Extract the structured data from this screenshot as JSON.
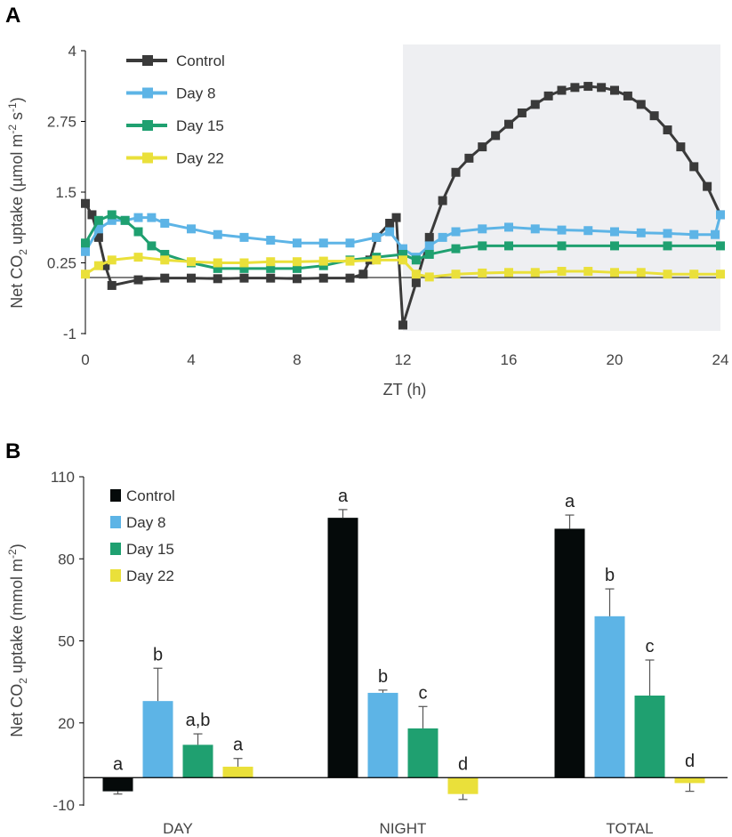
{
  "figure": {
    "panel_a_label": "A",
    "panel_b_label": "B"
  },
  "colors": {
    "control_line": "#3a3a3a",
    "control_bar": "#050a0a",
    "day8": "#5db4e6",
    "day15": "#1fa070",
    "day22": "#eae03a",
    "night_shade": "#eeeff2",
    "axis": "#000000"
  },
  "chart_data": [
    {
      "type": "line",
      "panel": "A",
      "title": "",
      "xlabel": "ZT (h)",
      "ylabel_parts": {
        "before": "Net  CO",
        "sub": "2",
        "middle": " uptake (µmol m",
        "sup1": "-2",
        "space": " s",
        "sup2": "-1",
        "after": ")"
      },
      "xlim": [
        0,
        24
      ],
      "ylim": [
        -1,
        4
      ],
      "xticks": [
        "0",
        "4",
        "8",
        "12",
        "16",
        "20",
        "24"
      ],
      "yticks": [
        "-1",
        "0.25",
        "1.5",
        "2.75",
        "4"
      ],
      "shaded_region_x": [
        12,
        24
      ],
      "legend": [
        "Control",
        "Day 8",
        "Day 15",
        "Day 22"
      ],
      "legend_position": "top-left",
      "series": [
        {
          "name": "Control",
          "color_key": "control_line",
          "x": [
            0,
            0.25,
            0.5,
            0.75,
            1,
            2,
            3,
            4,
            5,
            6,
            7,
            8,
            9,
            10,
            10.5,
            10.75,
            11,
            11.5,
            11.75,
            12,
            12.5,
            13,
            13.5,
            14,
            14.5,
            15,
            15.5,
            16,
            16.5,
            17,
            17.5,
            18,
            18.5,
            19,
            19.5,
            20,
            20.5,
            21,
            21.5,
            22,
            22.5,
            23,
            23.5,
            24
          ],
          "y": [
            1.3,
            1.1,
            0.7,
            0.2,
            -0.15,
            -0.05,
            -0.02,
            -0.02,
            -0.03,
            -0.02,
            -0.02,
            -0.03,
            -0.02,
            -0.02,
            0.05,
            0.3,
            0.7,
            0.95,
            1.05,
            -0.85,
            -0.1,
            0.7,
            1.35,
            1.85,
            2.1,
            2.3,
            2.5,
            2.7,
            2.9,
            3.05,
            3.2,
            3.3,
            3.35,
            3.37,
            3.35,
            3.3,
            3.2,
            3.05,
            2.85,
            2.6,
            2.3,
            1.95,
            1.6,
            1.1
          ]
        },
        {
          "name": "Day 8",
          "color_key": "day8",
          "x": [
            0,
            0.5,
            1,
            1.5,
            2,
            2.5,
            3,
            4,
            5,
            6,
            7,
            8,
            9,
            10,
            11,
            11.5,
            12,
            12.5,
            13,
            13.5,
            14,
            15,
            16,
            17,
            18,
            19,
            20,
            21,
            22,
            23,
            23.8,
            24
          ],
          "y": [
            0.45,
            0.85,
            1.0,
            1.0,
            1.05,
            1.05,
            0.95,
            0.85,
            0.75,
            0.7,
            0.65,
            0.6,
            0.6,
            0.6,
            0.7,
            0.8,
            0.5,
            0.35,
            0.55,
            0.7,
            0.8,
            0.85,
            0.88,
            0.85,
            0.83,
            0.82,
            0.8,
            0.78,
            0.77,
            0.75,
            0.75,
            1.1
          ]
        },
        {
          "name": "Day 15",
          "color_key": "day15",
          "x": [
            0,
            0.5,
            1,
            1.5,
            2,
            2.5,
            3,
            4,
            5,
            6,
            7,
            8,
            9,
            10,
            11,
            12,
            12.5,
            13,
            14,
            15,
            16,
            18,
            20,
            22,
            24
          ],
          "y": [
            0.6,
            1.0,
            1.1,
            1.0,
            0.8,
            0.55,
            0.4,
            0.25,
            0.15,
            0.15,
            0.15,
            0.15,
            0.2,
            0.3,
            0.35,
            0.4,
            0.3,
            0.4,
            0.5,
            0.55,
            0.55,
            0.55,
            0.55,
            0.55,
            0.55
          ]
        },
        {
          "name": "Day 22",
          "color_key": "day22",
          "x": [
            0,
            0.5,
            1,
            2,
            3,
            4,
            5,
            6,
            7,
            8,
            9,
            10,
            11,
            12,
            12.5,
            13,
            14,
            15,
            16,
            17,
            18,
            19,
            20,
            21,
            22,
            23,
            24
          ],
          "y": [
            0.05,
            0.2,
            0.3,
            0.35,
            0.3,
            0.27,
            0.25,
            0.25,
            0.27,
            0.27,
            0.28,
            0.28,
            0.3,
            0.3,
            0.05,
            0.0,
            0.05,
            0.07,
            0.08,
            0.08,
            0.1,
            0.1,
            0.08,
            0.08,
            0.05,
            0.05,
            0.05
          ]
        }
      ]
    },
    {
      "type": "bar",
      "panel": "B",
      "title": "",
      "xlabel": "",
      "ylabel_parts": {
        "before": "Net CO",
        "sub": "2",
        "middle": " uptake (mmol m",
        "sup1": "-2",
        "after": ")"
      },
      "ylim": [
        -10,
        110
      ],
      "yticks": [
        "-10",
        "20",
        "50",
        "80",
        "110"
      ],
      "categories": [
        "DAY",
        "NIGHT",
        "TOTAL"
      ],
      "legend": [
        "Control",
        "Day 8",
        "Day 15",
        "Day 22"
      ],
      "legend_position": "top-left",
      "series": [
        {
          "name": "Control",
          "color_key": "control_bar",
          "values": [
            -5,
            95,
            91
          ],
          "errors": [
            1,
            3,
            5
          ],
          "letters": [
            "a",
            "a",
            "a"
          ]
        },
        {
          "name": "Day 8",
          "color_key": "day8",
          "values": [
            28,
            31,
            59
          ],
          "errors": [
            12,
            1,
            10
          ],
          "letters": [
            "b",
            "b",
            "b"
          ]
        },
        {
          "name": "Day 15",
          "color_key": "day15",
          "values": [
            12,
            18,
            30
          ],
          "errors": [
            4,
            8,
            13
          ],
          "letters": [
            "a,b",
            "c",
            "c"
          ]
        },
        {
          "name": "Day 22",
          "color_key": "day22",
          "values": [
            4,
            -6,
            -2
          ],
          "errors": [
            3,
            2,
            3
          ],
          "letters": [
            "a",
            "d",
            "d"
          ]
        }
      ]
    }
  ]
}
